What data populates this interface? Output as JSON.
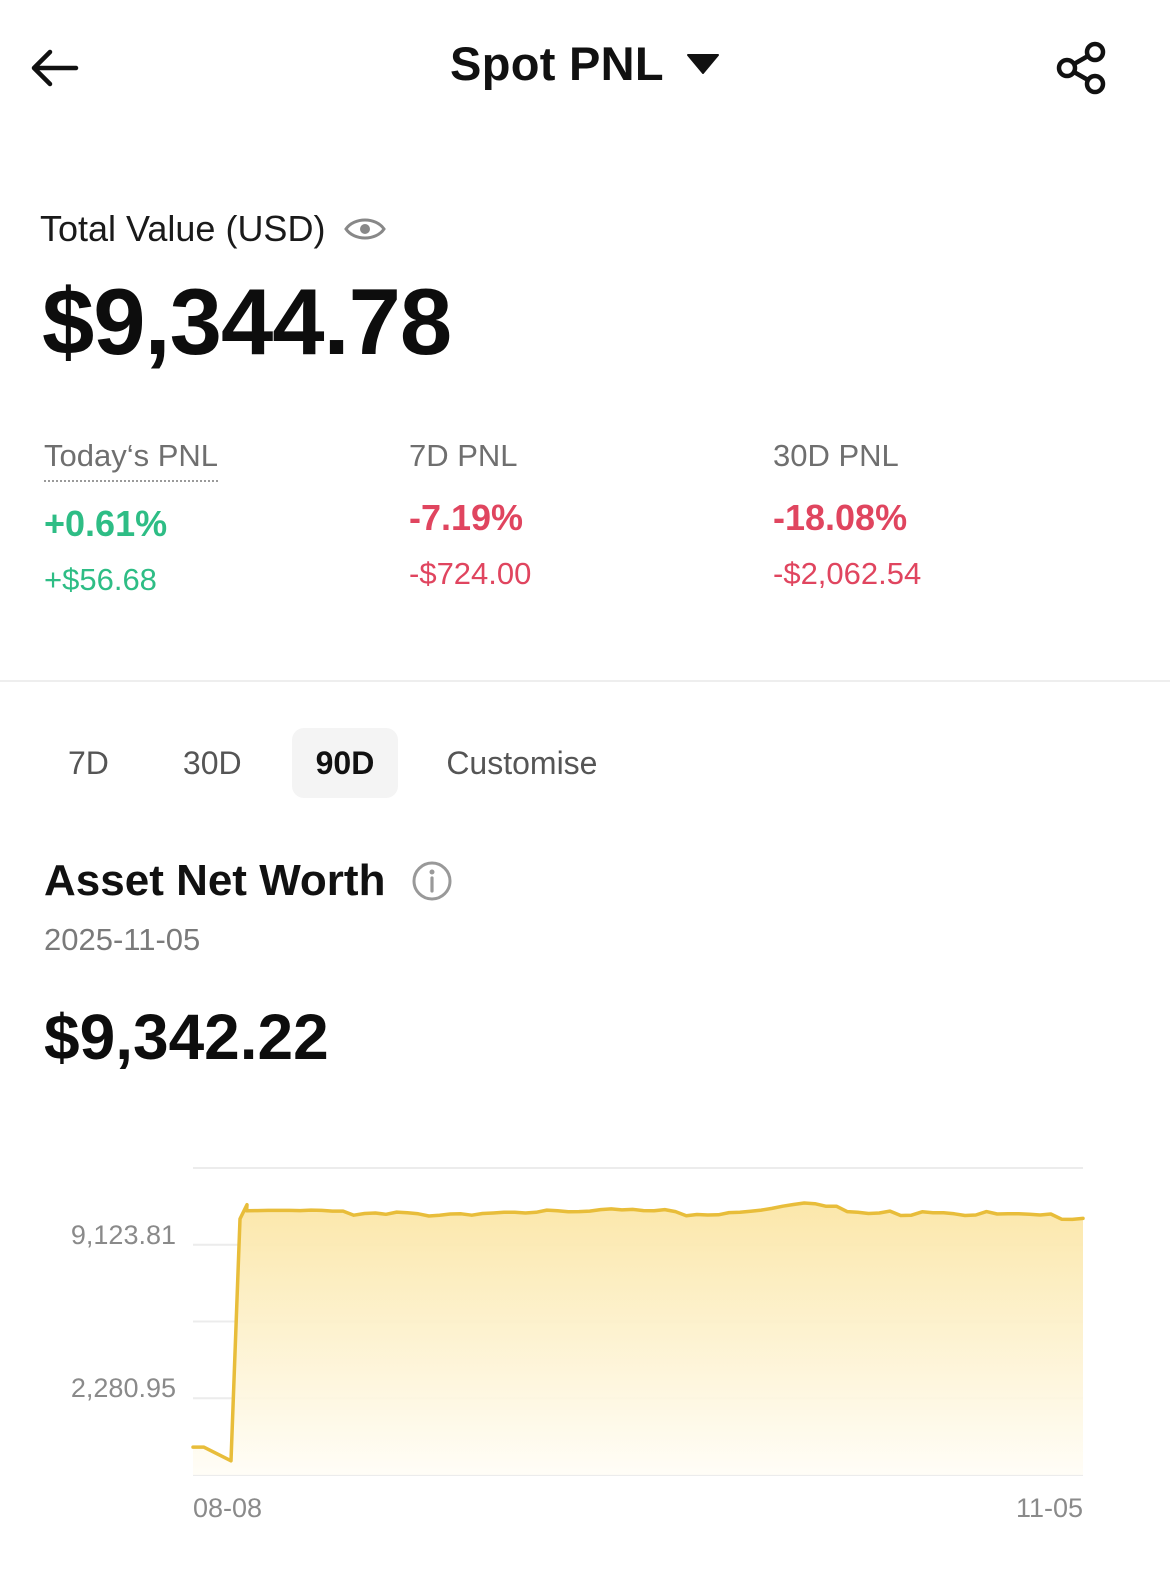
{
  "header": {
    "title": "Spot PNL",
    "back_icon": "arrow-left-icon",
    "dropdown_icon": "caret-down-icon",
    "share_icon": "share-icon"
  },
  "total": {
    "label": "Total Value (USD)",
    "eye_icon": "eye-icon",
    "value": "$9,344.78"
  },
  "pnl": [
    {
      "label": "Today‘s PNL",
      "percent": "+0.61%",
      "amount": "+$56.68",
      "trend": "up"
    },
    {
      "label": "7D PNL",
      "percent": "-7.19%",
      "amount": "-$724.00",
      "trend": "down"
    },
    {
      "label": "30D PNL",
      "percent": "-18.08%",
      "amount": "-$2,062.54",
      "trend": "down"
    }
  ],
  "tabs": [
    {
      "label": "7D",
      "active": false
    },
    {
      "label": "30D",
      "active": false
    },
    {
      "label": "90D",
      "active": true
    },
    {
      "label": "Customise",
      "active": false
    }
  ],
  "net_worth": {
    "title": "Asset Net Worth",
    "info_icon": "info-icon",
    "date": "2025-11-05",
    "value": "$9,342.22"
  },
  "colors": {
    "positive": "#2ebd85",
    "negative": "#e0455f",
    "line": "#e8bd3a",
    "fill": "#fbe9b4"
  },
  "chart_data": {
    "type": "area",
    "x_tick_labels": [
      "08-08",
      "11-05"
    ],
    "y_tick_labels": [
      "9,123.81",
      "2,280.95"
    ],
    "ylim": [
      -1140,
      11400
    ],
    "grid": true,
    "series": [
      {
        "values": [
          0,
          0,
          -560,
          9320,
          9900,
          9650,
          9660,
          9670,
          9670,
          9670,
          9660,
          9680,
          9670,
          9640,
          9640,
          9470,
          9540,
          9560,
          9510,
          9600,
          9570,
          9530,
          9440,
          9470,
          9520,
          9530,
          9470,
          9540,
          9560,
          9590,
          9590,
          9560,
          9590,
          9680,
          9650,
          9610,
          9620,
          9640,
          9700,
          9730,
          9690,
          9710,
          9660,
          9650,
          9700,
          9620,
          9450,
          9500,
          9480,
          9490,
          9580,
          9590,
          9630,
          9680,
          9750,
          9840,
          9910,
          9970,
          9940,
          9840,
          9840,
          9620,
          9590,
          9540,
          9560,
          9640,
          9460,
          9470,
          9610,
          9570,
          9570,
          9530,
          9460,
          9480,
          9620,
          9520,
          9530,
          9530,
          9510,
          9480,
          9520,
          9310,
          9300,
          9342.22
        ]
      }
    ]
  }
}
